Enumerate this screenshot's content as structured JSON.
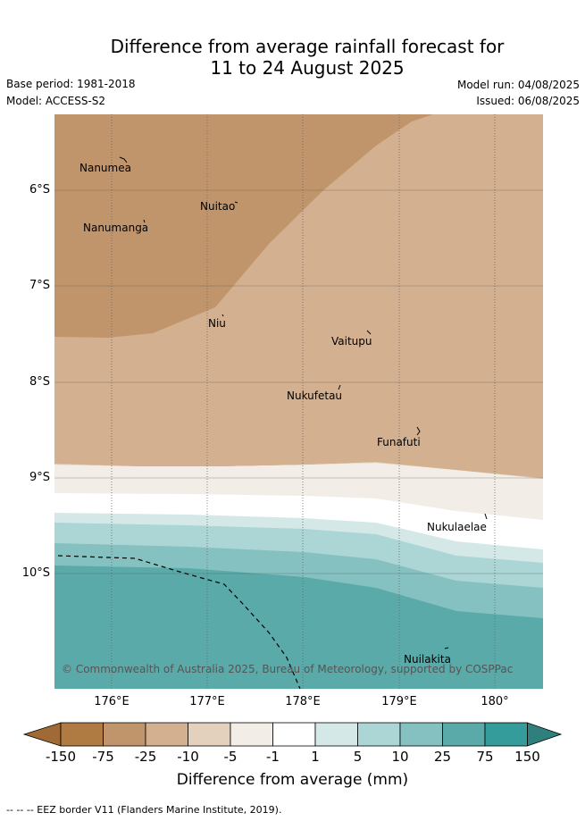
{
  "title_line1": "Difference from average rainfall forecast for",
  "title_line2": "11 to 24 August 2025",
  "meta": {
    "base_period": "Base period: 1981-2018",
    "model": "Model: ACCESS-S2",
    "model_run": "Model run: 04/08/2025",
    "issued": "Issued: 06/08/2025"
  },
  "axes": {
    "lat_labels": [
      "6°S",
      "7°S",
      "8°S",
      "9°S",
      "10°S"
    ],
    "lon_labels": [
      "176°E",
      "177°E",
      "178°E",
      "179°E",
      "180°"
    ]
  },
  "places": [
    {
      "name": "Nanumea"
    },
    {
      "name": "Nuitao"
    },
    {
      "name": "Nanumanga"
    },
    {
      "name": "Niu"
    },
    {
      "name": "Vaitupu"
    },
    {
      "name": "Nukufetau"
    },
    {
      "name": "Funafuti"
    },
    {
      "name": "Nukulaelae"
    },
    {
      "name": "Nuilakita"
    }
  ],
  "copyright": "© Commonwealth of Australia 2025, Bureau of Meteorology, supported by COSPPac",
  "legend": {
    "ticks": [
      "-150",
      "-75",
      "-25",
      "-10",
      "-5",
      "-1",
      "1",
      "5",
      "10",
      "25",
      "75",
      "150"
    ],
    "colors": [
      "#a06a37",
      "#b07a43",
      "#c0956b",
      "#d3b090",
      "#e3d0bd",
      "#f2ede7",
      "#ffffff",
      "#d5e8e8",
      "#acd5d5",
      "#85c1c1",
      "#5aaaa9",
      "#349d9b",
      "#2f7f7d"
    ],
    "title": "Difference from average (mm)"
  },
  "footnote": "-- -- -- EEZ border V11 (Flanders Marine Institute, 2019)."
}
